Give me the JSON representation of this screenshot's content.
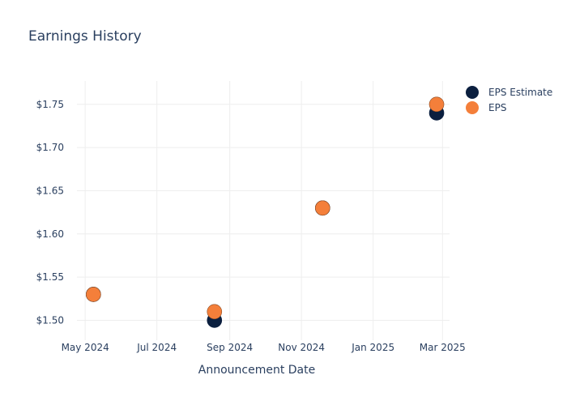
{
  "chart_data": {
    "type": "scatter",
    "title": "Earnings History",
    "xlabel": "Announcement Date",
    "ylabel": "",
    "x_ticks": [
      "May 2024",
      "Jul 2024",
      "Sep 2024",
      "Nov 2024",
      "Jan 2025",
      "Mar 2025"
    ],
    "x_tick_dates": [
      "2024-05-01",
      "2024-07-01",
      "2024-09-01",
      "2024-11-01",
      "2025-01-01",
      "2025-03-01"
    ],
    "x_range": [
      "2024-04-24",
      "2025-03-07"
    ],
    "y_ticks": [
      "$1.50",
      "$1.55",
      "$1.60",
      "$1.65",
      "$1.70",
      "$1.75"
    ],
    "y_tick_values": [
      1.5,
      1.55,
      1.6,
      1.65,
      1.7,
      1.75
    ],
    "ylim": [
      1.477,
      1.777
    ],
    "grid": true,
    "legend_position": "top-right",
    "series": [
      {
        "name": "EPS Estimate",
        "color": "#0b1f3f",
        "points": [
          {
            "x": "2024-05-08",
            "y": 1.53
          },
          {
            "x": "2024-08-19",
            "y": 1.5
          },
          {
            "x": "2024-11-19",
            "y": 1.63
          },
          {
            "x": "2025-02-24",
            "y": 1.74
          }
        ]
      },
      {
        "name": "EPS",
        "color": "#f47f3a",
        "points": [
          {
            "x": "2024-05-08",
            "y": 1.53
          },
          {
            "x": "2024-08-19",
            "y": 1.51
          },
          {
            "x": "2024-11-19",
            "y": 1.63
          },
          {
            "x": "2025-02-24",
            "y": 1.75
          }
        ]
      }
    ]
  }
}
